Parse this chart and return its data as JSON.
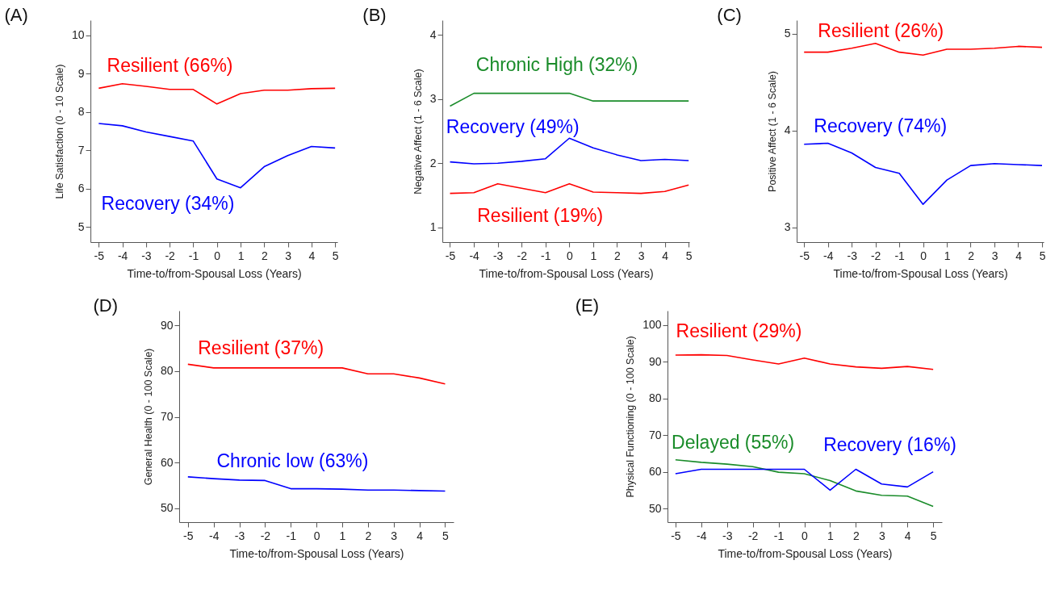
{
  "chart_data": [
    {
      "type": "line",
      "title": "(A)",
      "xlabel": "Time-to/from-Spousal Loss (Years)",
      "ylabel": "Life Satisfaction (0 - 10 Scale)",
      "x": [
        -5,
        -4,
        -3,
        -2,
        -1,
        0,
        1,
        2,
        3,
        4,
        5
      ],
      "xlim": [
        -5.35,
        5.1
      ],
      "xticks": [
        -5,
        -4,
        -3,
        -2,
        -1,
        0,
        1,
        2,
        3,
        4,
        5
      ],
      "ylim": [
        4.6,
        10.4
      ],
      "yticks": [
        5,
        6,
        7,
        8,
        9,
        10
      ],
      "grid": false,
      "legend": false,
      "series": [
        {
          "name": "Resilient (66%)",
          "color": "#ff0000",
          "values": [
            8.62,
            8.74,
            8.67,
            8.59,
            8.59,
            8.21,
            8.48,
            8.57,
            8.57,
            8.61,
            8.62
          ]
        },
        {
          "name": "Recovery (34%)",
          "color": "#0000ff",
          "values": [
            7.7,
            7.64,
            7.48,
            7.36,
            7.24,
            6.25,
            6.02,
            6.57,
            6.86,
            7.1,
            7.06
          ]
        }
      ]
    },
    {
      "type": "line",
      "title": "(B)",
      "xlabel": "Time-to/from-Spousal Loss (Years)",
      "ylabel": "Negative Affect (1 - 6 Scale)",
      "x": [
        -5,
        -4,
        -3,
        -2,
        -1,
        0,
        1,
        2,
        3,
        4,
        5
      ],
      "xlim": [
        -5.32,
        5.03
      ],
      "xticks": [
        -5,
        -4,
        -3,
        -2,
        -1,
        0,
        1,
        2,
        3,
        4,
        5
      ],
      "ylim": [
        0.77,
        4.23
      ],
      "yticks": [
        1,
        2,
        3,
        4
      ],
      "grid": false,
      "legend": false,
      "series": [
        {
          "name": "Chronic High (32%)",
          "color": "#1a8c2a",
          "values": [
            2.89,
            3.09,
            3.09,
            3.09,
            3.09,
            3.09,
            2.97,
            2.97,
            2.97,
            2.97,
            2.97
          ]
        },
        {
          "name": "Recovery (49%)",
          "color": "#0000ff",
          "values": [
            2.02,
            1.99,
            2.0,
            2.03,
            2.07,
            2.39,
            2.24,
            2.13,
            2.04,
            2.06,
            2.04
          ]
        },
        {
          "name": "Resilient (19%)",
          "color": "#ff0000",
          "values": [
            1.53,
            1.54,
            1.68,
            1.61,
            1.54,
            1.68,
            1.55,
            1.54,
            1.53,
            1.56,
            1.66
          ]
        }
      ]
    },
    {
      "type": "line",
      "title": "(C)",
      "xlabel": "Time-to/from-Spousal Loss (Years)",
      "ylabel": "Positive Affect (1 - 6 Scale)",
      "x": [
        -5,
        -4,
        -3,
        -2,
        -1,
        0,
        1,
        2,
        3,
        4,
        5
      ],
      "xlim": [
        -5.31,
        5.07
      ],
      "xticks": [
        -5,
        -4,
        -3,
        -2,
        -1,
        0,
        1,
        2,
        3,
        4,
        5
      ],
      "ylim": [
        2.85,
        5.14
      ],
      "yticks": [
        3,
        4,
        5
      ],
      "grid": false,
      "legend": false,
      "series": [
        {
          "name": "Resilient (26%)",
          "color": "#ff0000",
          "values": [
            4.81,
            4.81,
            4.85,
            4.9,
            4.81,
            4.78,
            4.84,
            4.84,
            4.85,
            4.87,
            4.86
          ]
        },
        {
          "name": "Recovery (74%)",
          "color": "#0000ff",
          "values": [
            3.86,
            3.87,
            3.77,
            3.62,
            3.56,
            3.24,
            3.49,
            3.64,
            3.66,
            3.65,
            3.64
          ]
        }
      ]
    },
    {
      "type": "line",
      "title": "(D)",
      "xlabel": "Time-to/from-Spousal Loss (Years)",
      "ylabel": "General Health (0 - 100 Scale)",
      "x": [
        -5,
        -4,
        -3,
        -2,
        -1,
        0,
        1,
        2,
        3,
        4,
        5
      ],
      "xlim": [
        -5.34,
        5.33
      ],
      "xticks": [
        -5,
        -4,
        -3,
        -2,
        -1,
        0,
        1,
        2,
        3,
        4,
        5
      ],
      "ylim": [
        47,
        93.2
      ],
      "yticks": [
        50,
        60,
        70,
        80,
        90
      ],
      "grid": false,
      "legend": false,
      "series": [
        {
          "name": "Resilient (37%)",
          "color": "#ff0000",
          "values": [
            81.5,
            80.7,
            80.7,
            80.7,
            80.7,
            80.7,
            80.7,
            79.4,
            79.4,
            78.5,
            77.2
          ]
        },
        {
          "name": "Chronic low (63%)",
          "color": "#0000ff",
          "values": [
            56.9,
            56.5,
            56.2,
            56.1,
            54.3,
            54.3,
            54.2,
            54.0,
            54.0,
            53.9,
            53.8
          ]
        }
      ]
    },
    {
      "type": "line",
      "title": "(E)",
      "xlabel": "Time-to/from-Spousal Loss (Years)",
      "ylabel": "Physical Functioning (0 - 100 Scale)",
      "x": [
        -5,
        -4,
        -3,
        -2,
        -1,
        0,
        1,
        2,
        3,
        4,
        5
      ],
      "xlim": [
        -5.31,
        5.34
      ],
      "xticks": [
        -5,
        -4,
        -3,
        -2,
        -1,
        0,
        1,
        2,
        3,
        4,
        5
      ],
      "ylim": [
        46.3,
        103.9
      ],
      "yticks": [
        50,
        60,
        70,
        80,
        90,
        100
      ],
      "grid": false,
      "legend": false,
      "series": [
        {
          "name": "Resilient (29%)",
          "color": "#ff0000",
          "values": [
            91.8,
            91.9,
            91.7,
            90.5,
            89.4,
            91.0,
            89.4,
            88.6,
            88.2,
            88.7,
            87.9
          ]
        },
        {
          "name": "Delayed (55%)",
          "color": "#1a8c2a",
          "values": [
            63.3,
            62.6,
            62.1,
            61.4,
            59.9,
            59.5,
            57.6,
            54.8,
            53.6,
            53.4,
            50.6
          ]
        },
        {
          "name": "Recovery (16%)",
          "color": "#0000ff",
          "values": [
            59.5,
            60.7,
            60.7,
            60.7,
            60.7,
            60.7,
            55.0,
            60.7,
            56.7,
            55.9,
            60.0
          ]
        }
      ]
    }
  ]
}
